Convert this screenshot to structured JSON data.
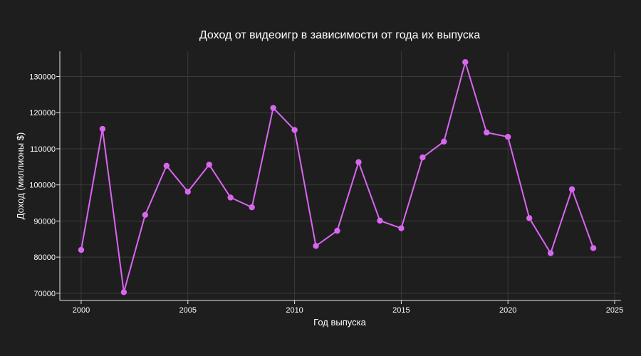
{
  "chart_data": {
    "type": "line",
    "title": "Доход от видеоигр в зависимости от года их выпуска",
    "xlabel": "Год выпуска",
    "ylabel": "Доход (миллионы $)",
    "xlim": [
      1999,
      2025.3
    ],
    "ylim": [
      68000,
      137000
    ],
    "x_ticks": [
      2000,
      2005,
      2010,
      2015,
      2020,
      2025
    ],
    "y_ticks": [
      70000,
      80000,
      90000,
      100000,
      110000,
      120000,
      130000
    ],
    "grid": true,
    "legend": "none",
    "colors": {
      "background": "#1e1e1e",
      "series": "#d966f0",
      "text": "#ffffff",
      "grid": "#3a3a3a"
    },
    "x": [
      2000,
      2001,
      2002,
      2003,
      2004,
      2005,
      2006,
      2007,
      2008,
      2009,
      2010,
      2011,
      2012,
      2013,
      2014,
      2015,
      2016,
      2017,
      2018,
      2019,
      2020,
      2021,
      2022,
      2023,
      2024
    ],
    "series": [
      {
        "values": [
          82000,
          115500,
          70300,
          91700,
          105300,
          98100,
          105600,
          96500,
          93800,
          121300,
          115200,
          83100,
          87300,
          106300,
          90100,
          88000,
          107600,
          112000,
          134000,
          114500,
          113300,
          90800,
          81100,
          98800,
          82500
        ]
      }
    ]
  }
}
